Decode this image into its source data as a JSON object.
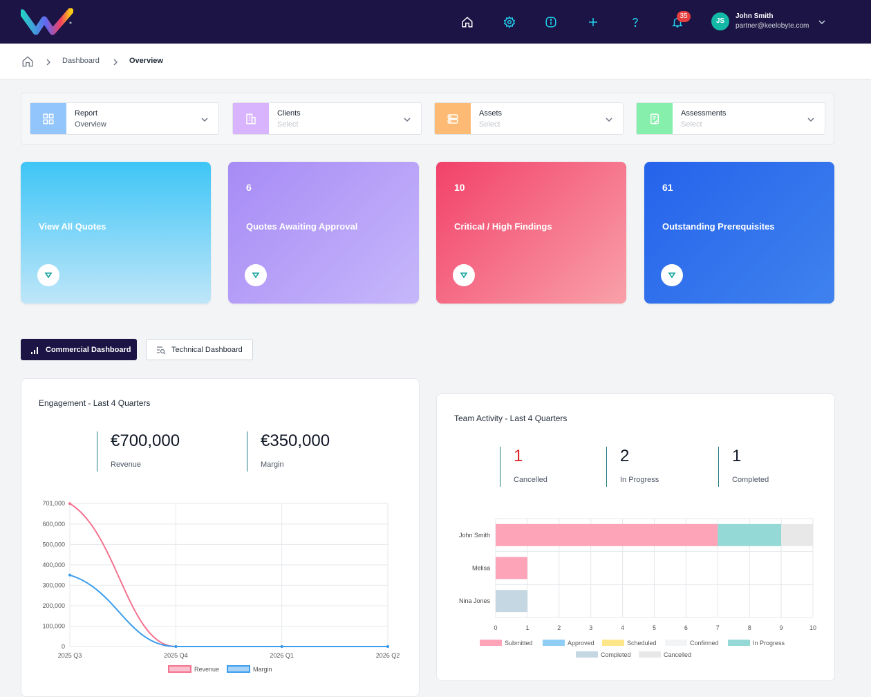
{
  "header": {
    "notifications_count": "35",
    "user": {
      "initials": "JS",
      "name": "John Smith",
      "email": "partner@keelobyte.com"
    },
    "icons": [
      "home-icon",
      "gear-icon",
      "info-icon",
      "plus-icon",
      "help-icon",
      "bell-icon",
      "chevron-down-icon"
    ]
  },
  "breadcrumb": {
    "items": [
      "Dashboard",
      "Overview"
    ]
  },
  "filters": [
    {
      "label": "Report",
      "value": "Overview",
      "placeholder": false,
      "color": "#93c5fd",
      "icon": "grid-icon"
    },
    {
      "label": "Clients",
      "value": "Select",
      "placeholder": true,
      "color": "#d8b4fe",
      "icon": "building-icon"
    },
    {
      "label": "Assets",
      "value": "Select",
      "placeholder": true,
      "color": "#fdba74",
      "icon": "server-icon"
    },
    {
      "label": "Assessments",
      "value": "Select",
      "placeholder": true,
      "color": "#86efac",
      "icon": "clipboard-check-icon"
    }
  ],
  "cards": [
    {
      "number": "",
      "label": "View All Quotes"
    },
    {
      "number": "6",
      "label": "Quotes Awaiting Approval"
    },
    {
      "number": "10",
      "label": "Critical / High Findings"
    },
    {
      "number": "61",
      "label": "Outstanding Prerequisites"
    }
  ],
  "tabs": {
    "commercial": "Commercial Dashboard",
    "technical": "Technical Dashboard",
    "active": "commercial"
  },
  "engagement": {
    "title": "Engagement - Last 4 Quarters",
    "kpis": [
      {
        "value": "€700,000",
        "label": "Revenue"
      },
      {
        "value": "€350,000",
        "label": "Margin"
      }
    ]
  },
  "team": {
    "title": "Team Activity - Last 4 Quarters",
    "kpis": [
      {
        "value": "1",
        "label": "Cancelled",
        "color": "#dc2626"
      },
      {
        "value": "2",
        "label": "In Progress",
        "color": "#111827"
      },
      {
        "value": "1",
        "label": "Completed",
        "color": "#111827"
      }
    ]
  },
  "chart_data": [
    {
      "type": "line",
      "x": [
        "2025 Q3",
        "2025 Q4",
        "2026 Q1",
        "2026 Q2"
      ],
      "series": [
        {
          "name": "Revenue",
          "values": [
            700000,
            0,
            0,
            0
          ],
          "color": "#f4728f"
        },
        {
          "name": "Margin",
          "values": [
            350000,
            0,
            0,
            0
          ],
          "color": "#3b9ded"
        }
      ],
      "ylim": [
        0,
        701000
      ],
      "yticks": [
        "701,000",
        "600,000",
        "500,000",
        "400,000",
        "300,000",
        "200,000",
        "100,000",
        "0"
      ],
      "legend": "bottom",
      "grid": true
    },
    {
      "type": "bar",
      "orientation": "horizontal",
      "stacked": true,
      "categories": [
        "John Smith",
        "Melisa",
        "Nina Jones"
      ],
      "series": [
        {
          "name": "Submitted",
          "values": [
            7,
            1,
            0
          ],
          "color": "#fda4b8"
        },
        {
          "name": "Approved",
          "values": [
            0,
            0,
            0
          ],
          "color": "#90cdf4"
        },
        {
          "name": "Scheduled",
          "values": [
            0,
            0,
            0
          ],
          "color": "#fde68a"
        },
        {
          "name": "Confirmed",
          "values": [
            0,
            0,
            0
          ],
          "color": "#f3f4f6"
        },
        {
          "name": "In Progress",
          "values": [
            2,
            0,
            0
          ],
          "color": "#94d9d6"
        },
        {
          "name": "Completed",
          "values": [
            0,
            0,
            1
          ],
          "color": "#c5d7e2"
        },
        {
          "name": "Cancelled",
          "values": [
            1,
            0,
            0
          ],
          "color": "#e8e8e8"
        }
      ],
      "xlim": [
        0,
        10
      ],
      "xticks": [
        "0",
        "1",
        "2",
        "3",
        "4",
        "5",
        "6",
        "7",
        "8",
        "9",
        "10"
      ],
      "legend": "bottom",
      "grid": true
    }
  ]
}
